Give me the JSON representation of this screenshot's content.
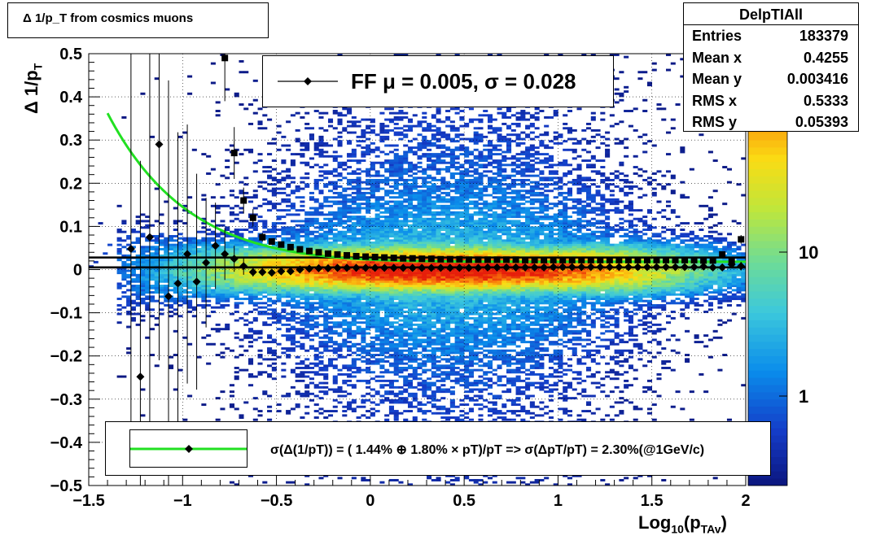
{
  "title": "Δ 1/p_T from cosmics muons",
  "stats": {
    "name": "DelpTIAll",
    "rows": [
      {
        "label": "Entries",
        "value": "183379"
      },
      {
        "label": "Mean x",
        "value": "0.4255"
      },
      {
        "label": "Mean y",
        "value": "0.003416"
      },
      {
        "label": "RMS x",
        "value": "0.5333"
      },
      {
        "label": "RMS y",
        "value": "0.05393"
      }
    ]
  },
  "fit_legend": "FF μ =  0.005, σ =   0.028",
  "resolution_legend": "σ(Δ(1/pT)) = ( 1.44% ⊕  1.80% × pT)/pT => σ(ΔpT/pT) =  2.30%(@1GeV/c)",
  "colors": {
    "green_fit": "#22e022",
    "markers": "#000000"
  },
  "chart_data": {
    "type": "heatmap",
    "xlabel": "Log10(pTAv)",
    "ylabel": "Δ 1/pT",
    "xlim": [
      -1.5,
      2
    ],
    "ylim": [
      -0.5,
      0.5
    ],
    "x_ticks": [
      "−1.5",
      "−1",
      "−0.5",
      "0",
      "0.5",
      "1",
      "1.5",
      "2"
    ],
    "y_ticks": [
      "−0.5",
      "−0.4",
      "−0.3",
      "−0.2",
      "−0.1",
      "0",
      "0.1",
      "0.2",
      "0.3",
      "0.4",
      "0.5"
    ],
    "z_scale": "log",
    "z_ticks": [
      "1",
      "10"
    ],
    "grid": true,
    "mean_profile": {
      "name": "FF",
      "x": [
        -1.275,
        -1.225,
        -1.175,
        -1.125,
        -1.075,
        -1.025,
        -0.975,
        -0.925,
        -0.875,
        -0.825,
        -0.775,
        -0.725,
        -0.675,
        -0.625,
        -0.575,
        -0.525,
        -0.475,
        -0.425,
        -0.375,
        -0.325,
        -0.275,
        -0.225,
        -0.175,
        -0.125,
        -0.075,
        -0.025,
        0.025,
        0.075,
        0.125,
        0.175,
        0.225,
        0.275,
        0.325,
        0.375,
        0.425,
        0.475,
        0.525,
        0.575,
        0.625,
        0.675,
        0.725,
        0.775,
        0.825,
        0.875,
        0.925,
        0.975,
        1.025,
        1.075,
        1.125,
        1.175,
        1.225,
        1.275,
        1.325,
        1.375,
        1.425,
        1.475,
        1.525,
        1.575,
        1.625,
        1.675,
        1.725,
        1.775,
        1.825,
        1.875,
        1.925,
        1.975
      ],
      "y": [
        0.048,
        -0.248,
        0.075,
        0.29,
        -0.062,
        -0.032,
        0.036,
        -0.028,
        0.016,
        0.055,
        0.036,
        0.025,
        0.008,
        -0.006,
        -0.006,
        -0.007,
        -0.004,
        -0.004,
        0.0,
        0.002,
        0.003,
        0.003,
        0.004,
        0.004,
        0.004,
        0.004,
        0.004,
        0.004,
        0.004,
        0.004,
        0.004,
        0.004,
        0.004,
        0.004,
        0.004,
        0.004,
        0.004,
        0.004,
        0.005,
        0.005,
        0.005,
        0.005,
        0.005,
        0.005,
        0.005,
        0.006,
        0.006,
        0.006,
        0.006,
        0.006,
        0.006,
        0.006,
        0.006,
        0.006,
        0.006,
        0.006,
        0.006,
        0.006,
        0.006,
        0.006,
        0.006,
        0.007,
        0.005,
        0.005,
        0.012,
        0.008
      ],
      "yerr": [
        0.5,
        0.5,
        0.5,
        0.5,
        0.5,
        0.35,
        0.3,
        0.25,
        0.15,
        0.1,
        0.06,
        0.03,
        0.02,
        0.01,
        0.008,
        0.005,
        0.004,
        0.003,
        0.002,
        0.002,
        0.002,
        0.002,
        0.002,
        0.002,
        0.002,
        0.002,
        0.002,
        0.002,
        0.002,
        0.002,
        0.002,
        0.002,
        0.002,
        0.002,
        0.002,
        0.002,
        0.002,
        0.002,
        0.002,
        0.002,
        0.002,
        0.002,
        0.002,
        0.002,
        0.002,
        0.002,
        0.002,
        0.002,
        0.002,
        0.002,
        0.002,
        0.002,
        0.002,
        0.002,
        0.002,
        0.003,
        0.003,
        0.003,
        0.003,
        0.004,
        0.004,
        0.005,
        0.006,
        0.007,
        0.008,
        0.01
      ]
    },
    "sigma_profile": {
      "x": [
        -0.775,
        -0.725,
        -0.675,
        -0.625,
        -0.575,
        -0.525,
        -0.475,
        -0.425,
        -0.375,
        -0.325,
        -0.275,
        -0.225,
        -0.175,
        -0.125,
        -0.075,
        -0.025,
        0.025,
        0.075,
        0.125,
        0.175,
        0.225,
        0.275,
        0.325,
        0.375,
        0.425,
        0.475,
        0.525,
        0.575,
        0.625,
        0.675,
        0.725,
        0.775,
        0.825,
        0.875,
        0.925,
        0.975,
        1.025,
        1.075,
        1.125,
        1.175,
        1.225,
        1.275,
        1.325,
        1.375,
        1.425,
        1.475,
        1.525,
        1.575,
        1.625,
        1.675,
        1.725,
        1.775,
        1.825,
        1.875,
        1.925,
        1.975
      ],
      "y": [
        0.49,
        0.27,
        0.16,
        0.12,
        0.075,
        0.065,
        0.058,
        0.052,
        0.047,
        0.043,
        0.04,
        0.037,
        0.035,
        0.033,
        0.031,
        0.03,
        0.029,
        0.028,
        0.027,
        0.026,
        0.026,
        0.025,
        0.025,
        0.024,
        0.024,
        0.024,
        0.023,
        0.023,
        0.023,
        0.023,
        0.023,
        0.023,
        0.022,
        0.022,
        0.022,
        0.022,
        0.022,
        0.022,
        0.022,
        0.022,
        0.022,
        0.022,
        0.022,
        0.022,
        0.022,
        0.022,
        0.022,
        0.022,
        0.022,
        0.022,
        0.022,
        0.021,
        0.021,
        0.035,
        0.02,
        0.07
      ],
      "yerr": [
        0.1,
        0.06,
        0.03,
        0.02,
        0.01,
        0.006,
        0.004,
        0.003,
        0.002,
        0.002,
        0.002,
        0.002,
        0.002,
        0.002,
        0.002,
        0.002,
        0.002,
        0.002,
        0.002,
        0.002,
        0.002,
        0.002,
        0.002,
        0.002,
        0.002,
        0.002,
        0.002,
        0.002,
        0.002,
        0.002,
        0.002,
        0.002,
        0.002,
        0.002,
        0.002,
        0.002,
        0.002,
        0.002,
        0.002,
        0.002,
        0.002,
        0.002,
        0.002,
        0.002,
        0.002,
        0.002,
        0.003,
        0.003,
        0.003,
        0.004,
        0.004,
        0.005,
        0.006,
        0.007,
        0.008,
        0.01
      ]
    },
    "resolution_fit": {
      "a": 0.0144,
      "b": 0.018,
      "x_from": -1.4,
      "x_to": 2.0
    },
    "horizontal_lines": [
      0.005,
      0.028
    ]
  }
}
